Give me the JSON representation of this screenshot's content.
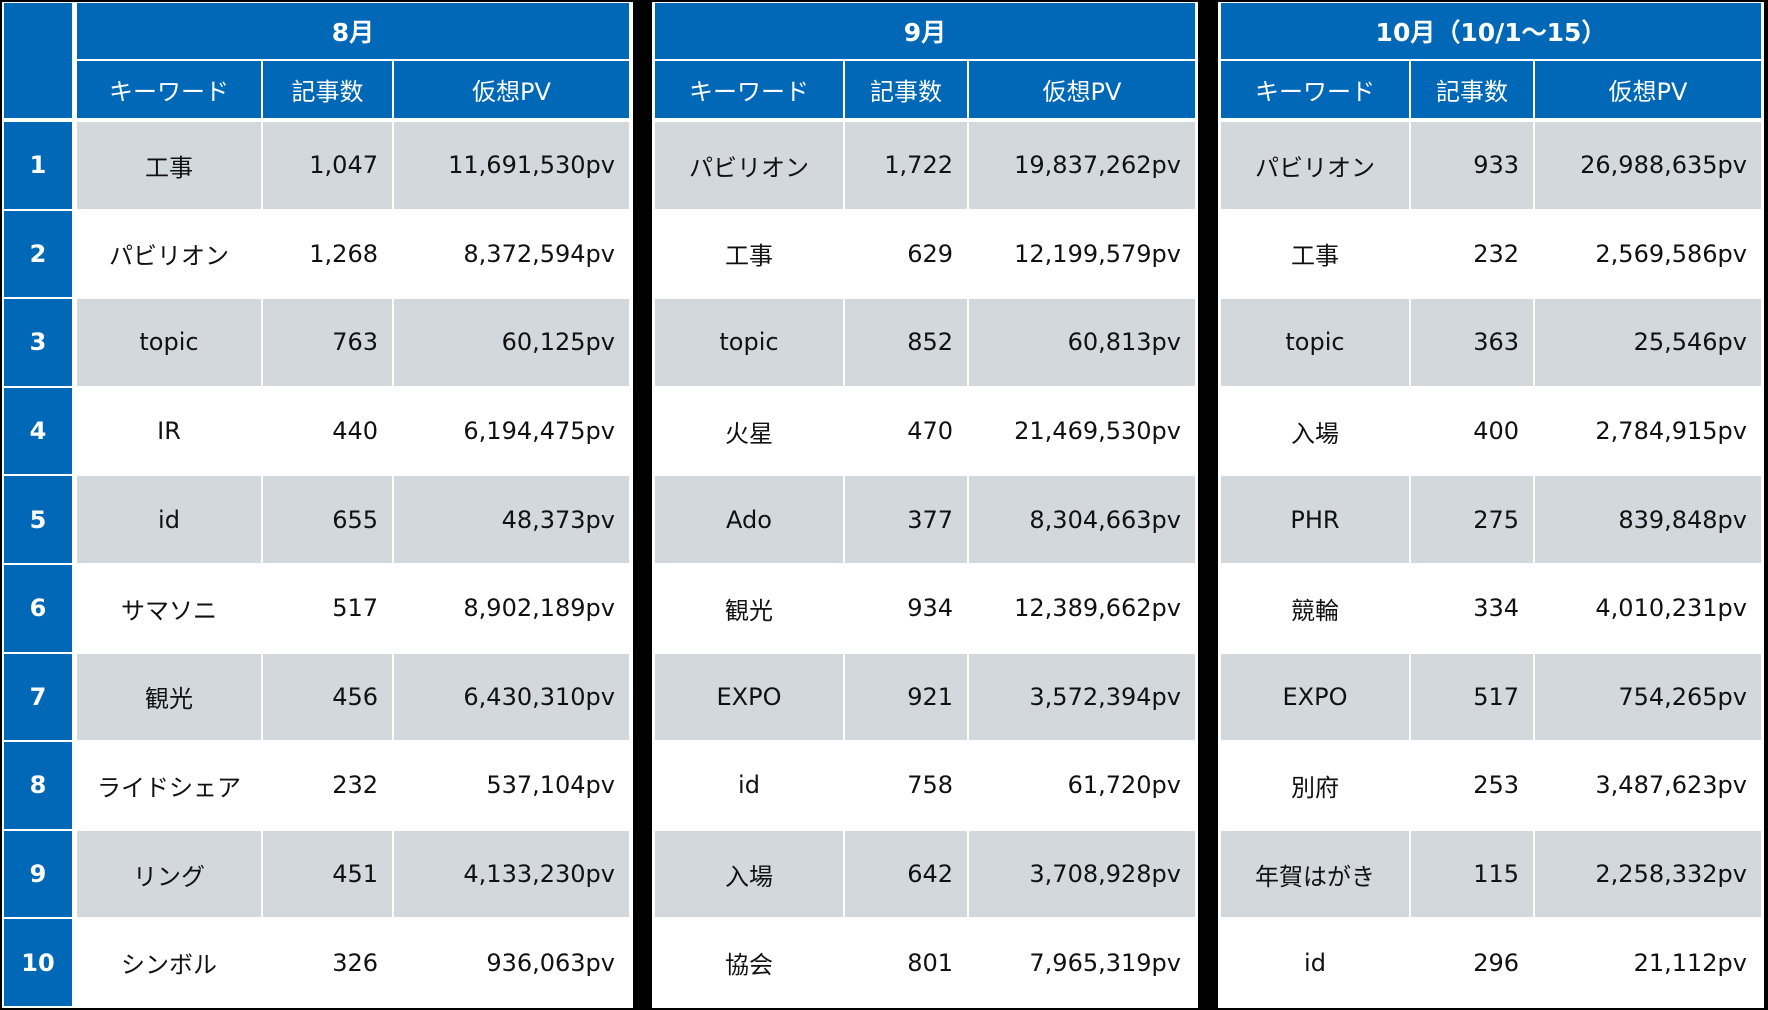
{
  "colors": {
    "header_blue": "#0068B7",
    "row_gray": "#D3D8DC",
    "row_white": "#FFFFFF",
    "background": "#000000"
  },
  "ranks": [
    "1",
    "2",
    "3",
    "4",
    "5",
    "6",
    "7",
    "8",
    "9",
    "10"
  ],
  "columns": {
    "keyword": "キーワード",
    "count": "記事数",
    "pv": "仮想PV"
  },
  "months": [
    {
      "title": "8月",
      "rows": [
        {
          "keyword": "工事",
          "count": "1,047",
          "pv": "11,691,530pv"
        },
        {
          "keyword": "パビリオン",
          "count": "1,268",
          "pv": "8,372,594pv"
        },
        {
          "keyword": "topic",
          "count": "763",
          "pv": "60,125pv"
        },
        {
          "keyword": "IR",
          "count": "440",
          "pv": "6,194,475pv"
        },
        {
          "keyword": "id",
          "count": "655",
          "pv": "48,373pv"
        },
        {
          "keyword": "サマソニ",
          "count": "517",
          "pv": "8,902,189pv"
        },
        {
          "keyword": "観光",
          "count": "456",
          "pv": "6,430,310pv"
        },
        {
          "keyword": "ライドシェア",
          "count": "232",
          "pv": "537,104pv"
        },
        {
          "keyword": "リング",
          "count": "451",
          "pv": "4,133,230pv"
        },
        {
          "keyword": "シンボル",
          "count": "326",
          "pv": "936,063pv"
        }
      ]
    },
    {
      "title": "9月",
      "rows": [
        {
          "keyword": "パビリオン",
          "count": "1,722",
          "pv": "19,837,262pv"
        },
        {
          "keyword": "工事",
          "count": "629",
          "pv": "12,199,579pv"
        },
        {
          "keyword": "topic",
          "count": "852",
          "pv": "60,813pv"
        },
        {
          "keyword": "火星",
          "count": "470",
          "pv": "21,469,530pv"
        },
        {
          "keyword": "Ado",
          "count": "377",
          "pv": "8,304,663pv"
        },
        {
          "keyword": "観光",
          "count": "934",
          "pv": "12,389,662pv"
        },
        {
          "keyword": "EXPO",
          "count": "921",
          "pv": "3,572,394pv"
        },
        {
          "keyword": "id",
          "count": "758",
          "pv": "61,720pv"
        },
        {
          "keyword": "入場",
          "count": "642",
          "pv": "3,708,928pv"
        },
        {
          "keyword": "協会",
          "count": "801",
          "pv": "7,965,319pv"
        }
      ]
    },
    {
      "title": "10月（10/1～15）",
      "rows": [
        {
          "keyword": "パビリオン",
          "count": "933",
          "pv": "26,988,635pv"
        },
        {
          "keyword": "工事",
          "count": "232",
          "pv": "2,569,586pv"
        },
        {
          "keyword": "topic",
          "count": "363",
          "pv": "25,546pv"
        },
        {
          "keyword": "入場",
          "count": "400",
          "pv": "2,784,915pv"
        },
        {
          "keyword": "PHR",
          "count": "275",
          "pv": "839,848pv"
        },
        {
          "keyword": "競輪",
          "count": "334",
          "pv": "4,010,231pv"
        },
        {
          "keyword": "EXPO",
          "count": "517",
          "pv": "754,265pv"
        },
        {
          "keyword": "別府",
          "count": "253",
          "pv": "3,487,623pv"
        },
        {
          "keyword": "年賀はがき",
          "count": "115",
          "pv": "2,258,332pv"
        },
        {
          "keyword": "id",
          "count": "296",
          "pv": "21,112pv"
        }
      ]
    }
  ]
}
